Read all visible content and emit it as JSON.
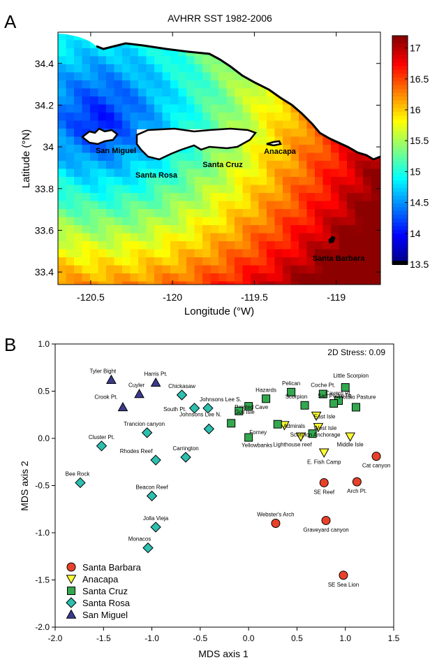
{
  "panel_a": {
    "letter": "A",
    "title": "AVHRR SST 1982-2006",
    "xlabel": "Longitude (°W)",
    "ylabel": "Latitude (°N)",
    "x_ticks": [
      "-120.5",
      "-120",
      "-119.5",
      "-119"
    ],
    "y_ticks": [
      "34.4",
      "34.2",
      "34",
      "33.8",
      "33.6",
      "33.4"
    ],
    "colorbar_ticks": [
      "17",
      "16.5",
      "16",
      "15.5",
      "15",
      "14.5",
      "14",
      "13.5"
    ],
    "island_labels": [
      "San Miguel",
      "Santa Rosa",
      "Santa Cruz",
      "Anacapa",
      "Santa Barbara"
    ]
  },
  "panel_b": {
    "letter": "B",
    "stress_label": "2D Stress: 0.09",
    "legend": [
      {
        "label": "Santa Barbara",
        "shape": "circle",
        "color": "#e8412a"
      },
      {
        "label": "Anacapa",
        "shape": "triangle-down",
        "color": "#ffff33"
      },
      {
        "label": "Santa Cruz",
        "shape": "square",
        "color": "#33a84f"
      },
      {
        "label": "Santa Rosa",
        "shape": "diamond",
        "color": "#2dbfb0"
      },
      {
        "label": "San Miguel",
        "shape": "triangle-up",
        "color": "#3b3a8f"
      }
    ]
  },
  "chart_data": [
    {
      "type": "heatmap",
      "title": "AVHRR SST 1982-2006",
      "xlabel": "Longitude (°W)",
      "ylabel": "Latitude (°N)",
      "xlim": [
        -120.7,
        -118.73
      ],
      "ylim": [
        33.34,
        34.55
      ],
      "color_range": [
        13.5,
        17.2
      ],
      "colorbar_ticks": [
        13.5,
        14,
        14.5,
        15,
        15.5,
        16,
        16.5,
        17
      ],
      "island_labels": [
        "San Miguel",
        "Santa Rosa",
        "Santa Cruz",
        "Anacapa",
        "Santa Barbara"
      ]
    },
    {
      "type": "scatter",
      "xlabel": "MDS axis 1",
      "ylabel": "MDS axis 2",
      "xlim": [
        -2.0,
        1.5
      ],
      "ylim": [
        -2.0,
        1.0
      ],
      "x_ticks": [
        "-2.0",
        "-1.5",
        "-1.0",
        "-0.5",
        "0.0",
        "0.5",
        "1.0",
        "1.5"
      ],
      "y_ticks": [
        "-2.0",
        "-1.5",
        "-1.0",
        "-0.5",
        "0.0",
        "0.5",
        "1.0"
      ],
      "annotation": "2D Stress: 0.09",
      "series": [
        {
          "name": "Santa Barbara",
          "points": [
            {
              "label": "Cat canyon",
              "x": 1.32,
              "y": -0.19
            },
            {
              "label": "Arch Pt.",
              "x": 1.12,
              "y": -0.46
            },
            {
              "label": "SE Reef",
              "x": 0.78,
              "y": -0.47
            },
            {
              "label": "Webster's Arch",
              "x": 0.28,
              "y": -0.9
            },
            {
              "label": "Graveyard canyon",
              "x": 0.8,
              "y": -0.87
            },
            {
              "label": "SE Sea Lion",
              "x": 0.98,
              "y": -1.45
            }
          ]
        },
        {
          "name": "Anacapa",
          "points": [
            {
              "label": "East Isle",
              "x": 0.7,
              "y": 0.24
            },
            {
              "label": "West Isle",
              "x": 0.72,
              "y": 0.12
            },
            {
              "label": "Admirals",
              "x": 0.37,
              "y": 0.14
            },
            {
              "label": "Lighthouse reef",
              "x": 0.54,
              "y": 0.02
            },
            {
              "label": "Middle Isle",
              "x": 1.05,
              "y": 0.02
            },
            {
              "label": "E. Fish Camp",
              "x": 0.78,
              "y": -0.15
            }
          ]
        },
        {
          "name": "Santa Cruz",
          "points": [
            {
              "label": "Hazards",
              "x": 0.18,
              "y": 0.42
            },
            {
              "label": "Pelican",
              "x": 0.44,
              "y": 0.49
            },
            {
              "label": "Coche Pt.",
              "x": 0.77,
              "y": 0.47
            },
            {
              "label": "Little Scorpion",
              "x": 1.0,
              "y": 0.54
            },
            {
              "label": "Cavern Pt.",
              "x": 0.93,
              "y": 0.4
            },
            {
              "label": "Potato Pasture",
              "x": 1.11,
              "y": 0.33
            },
            {
              "label": "Scorpion",
              "x": 0.58,
              "y": 0.35
            },
            {
              "label": "San Pedro Pt.",
              "x": 0.88,
              "y": 0.37
            },
            {
              "label": "Painted Cave",
              "x": 0.0,
              "y": 0.34
            },
            {
              "label": "Gull Isle",
              "x": -0.1,
              "y": 0.29
            },
            {
              "label": "Johnsons Lee N.",
              "x": -0.18,
              "y": 0.16
            },
            {
              "label": "Forney",
              "x": 0.3,
              "y": 0.15
            },
            {
              "label": "Yellowbanks",
              "x": 0.0,
              "y": 0.01
            },
            {
              "label": "Scorpion Anchorage",
              "x": 0.66,
              "y": 0.05
            }
          ]
        },
        {
          "name": "Santa Rosa",
          "points": [
            {
              "label": "Chickasaw",
              "x": -0.69,
              "y": 0.46
            },
            {
              "label": "Johnsons Lee S.",
              "x": -0.42,
              "y": 0.32
            },
            {
              "label": "South Pt.",
              "x": -0.56,
              "y": 0.32
            },
            {
              "label": "Carrington",
              "x": -0.65,
              "y": -0.2
            },
            {
              "label": "Trancion canyon",
              "x": -1.05,
              "y": 0.06
            },
            {
              "label": "Rhodes Reef",
              "x": -0.96,
              "y": -0.23
            },
            {
              "label": "Cluster Pt.",
              "x": -1.52,
              "y": -0.08
            },
            {
              "label": "Bee Rock",
              "x": -1.74,
              "y": -0.47
            },
            {
              "label": "Beacon Reef",
              "x": -1.0,
              "y": -0.61
            },
            {
              "label": "Jolla Vieja",
              "x": -0.96,
              "y": -0.94
            },
            {
              "label": "Monacos",
              "x": -1.04,
              "y": -1.16
            },
            {
              "label": "",
              "x": -0.41,
              "y": 0.1
            }
          ]
        },
        {
          "name": "San Miguel",
          "points": [
            {
              "label": "Tyler Bight",
              "x": -1.42,
              "y": 0.62
            },
            {
              "label": "Harris Pt.",
              "x": -0.96,
              "y": 0.59
            },
            {
              "label": "Cuyler",
              "x": -1.13,
              "y": 0.47
            },
            {
              "label": "Crook Pt.",
              "x": -1.3,
              "y": 0.33
            }
          ]
        }
      ]
    }
  ]
}
